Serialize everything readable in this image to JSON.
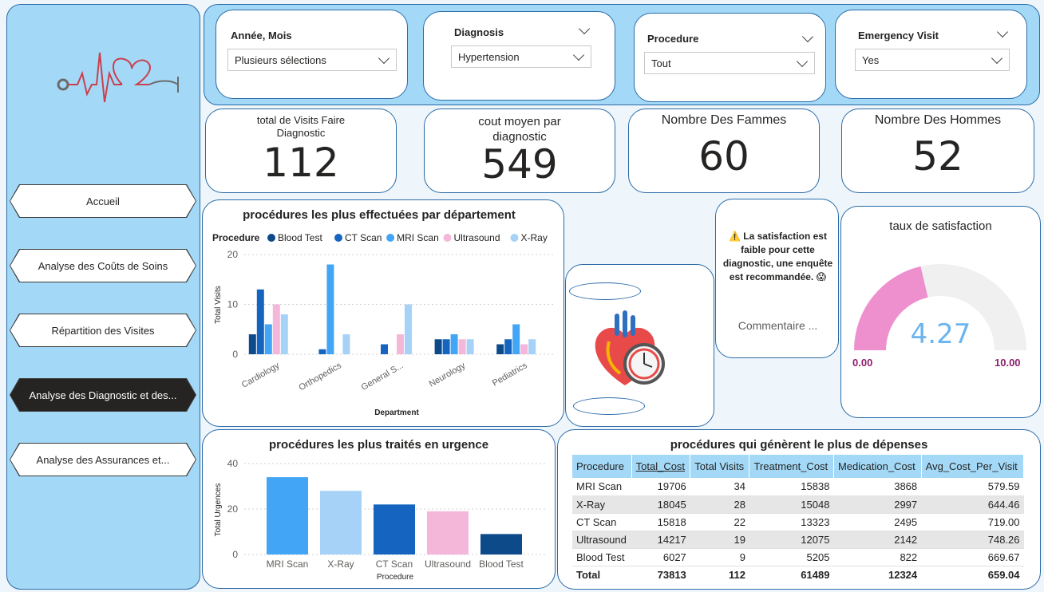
{
  "nav": [
    {
      "label": "Accueil",
      "active": false
    },
    {
      "label": "Analyse des Coûts de Soins",
      "active": false
    },
    {
      "label": "Répartition des Visites",
      "active": false
    },
    {
      "label": "Analyse des Diagnostic et des...",
      "active": true
    },
    {
      "label": "Analyse des Assurances et...",
      "active": false
    }
  ],
  "filters": {
    "year_month": {
      "title": "Année, Mois",
      "value": "Plusieurs sélections"
    },
    "diagnosis": {
      "title": "Diagnosis",
      "value": "Hypertension"
    },
    "procedure": {
      "title": "Procedure",
      "value": "Tout"
    },
    "emergency": {
      "title": "Emergency Visit",
      "value": "Yes"
    }
  },
  "kpis": {
    "visits": {
      "label": "total de Visits Faire Diagnostic",
      "value": "112"
    },
    "cost": {
      "label": "cout moyen par diagnostic",
      "value": "549"
    },
    "women": {
      "label": "Nombre Des Fammes",
      "value": "60"
    },
    "men": {
      "label": "Nombre Des Hommes",
      "value": "52"
    }
  },
  "colors": {
    "blood_test": "#0d4a8a",
    "ct_scan": "#1565c0",
    "mri_scan": "#42a5f5",
    "ultrasound": "#f4b6d9",
    "xray": "#a6d2f7",
    "gauge_fill": "#ee8fce",
    "gauge_track": "#f0f0f0",
    "gauge_value": "#6ab4f0",
    "gauge_label": "#8e1f6b"
  },
  "alert": {
    "icon": "warning-icon",
    "text": "⚠️ La satisfaction est faible pour cette diagnostic, une enquête est recommandée. 😱",
    "comment": "Commentaire ..."
  },
  "gauge": {
    "title": "taux de satisfaction",
    "value": "4.27",
    "min": "0.00",
    "max": "10.00",
    "fraction": 0.427
  },
  "chart_data": [
    {
      "type": "bar",
      "title": "procédures les plus effectuées par département",
      "legend_title": "Procedure",
      "legend_position": "top-left",
      "xlabel": "Department",
      "ylabel": "Total Visits",
      "ylim": [
        0,
        20
      ],
      "yticks": [
        0,
        10,
        20
      ],
      "categories": [
        "Cardiology",
        "Orthopedics",
        "General S...",
        "Neurology",
        "Pediatrics"
      ],
      "series": [
        {
          "name": "Blood Test",
          "values": [
            4,
            0,
            0,
            3,
            2
          ]
        },
        {
          "name": "CT Scan",
          "values": [
            13,
            1,
            2,
            3,
            3
          ]
        },
        {
          "name": "MRI Scan",
          "values": [
            6,
            18,
            0,
            4,
            6
          ]
        },
        {
          "name": "Ultrasound",
          "values": [
            10,
            0,
            4,
            3,
            2
          ]
        },
        {
          "name": "X-Ray",
          "values": [
            8,
            4,
            10,
            3,
            3
          ]
        }
      ]
    },
    {
      "type": "bar",
      "title": "procédures les plus traités en urgence",
      "xlabel": "Procedure",
      "ylabel": "Total Urgences",
      "ylim": [
        0,
        40
      ],
      "yticks": [
        0,
        20,
        40
      ],
      "categories": [
        "MRI Scan",
        "X-Ray",
        "CT Scan",
        "Ultrasound",
        "Blood Test"
      ],
      "values": [
        34,
        28,
        22,
        19,
        9
      ]
    },
    {
      "type": "table",
      "title": "procédures qui génèrent le plus de dépenses",
      "columns": [
        "Procedure",
        "Total_Cost",
        "Total Visits",
        "Treatment_Cost",
        "Medication_Cost",
        "Avg_Cost_Per_Visit"
      ],
      "rows": [
        [
          "MRI Scan",
          "19706",
          "34",
          "15838",
          "3868",
          "579.59"
        ],
        [
          "X-Ray",
          "18045",
          "28",
          "15048",
          "2997",
          "644.46"
        ],
        [
          "CT Scan",
          "15818",
          "22",
          "13323",
          "2495",
          "719.00"
        ],
        [
          "Ultrasound",
          "14217",
          "19",
          "12075",
          "2142",
          "748.26"
        ],
        [
          "Blood Test",
          "6027",
          "9",
          "5205",
          "822",
          "669.67"
        ]
      ],
      "total": [
        "Total",
        "73813",
        "112",
        "61489",
        "12324",
        "659.04"
      ]
    }
  ]
}
